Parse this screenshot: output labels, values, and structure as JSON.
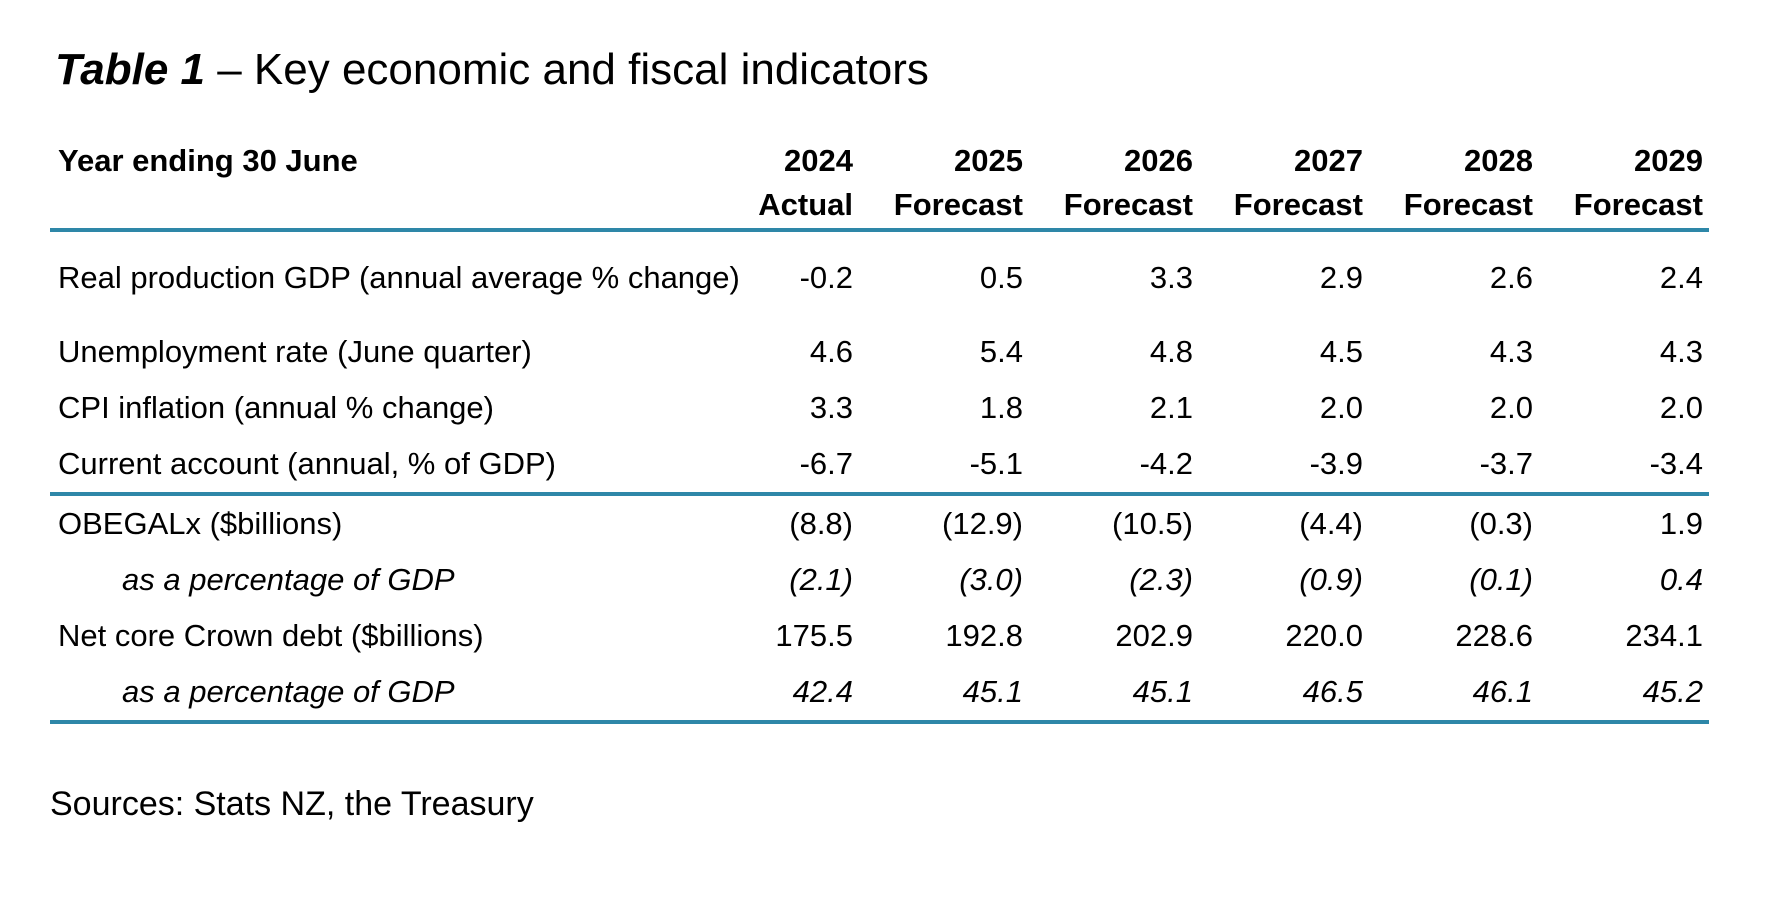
{
  "title": {
    "label": "Table 1",
    "separator": " – ",
    "text": "Key economic and fiscal indicators"
  },
  "table": {
    "corner_label": "Year ending 30 June",
    "columns": [
      {
        "year": "2024",
        "status": "Actual"
      },
      {
        "year": "2025",
        "status": "Forecast"
      },
      {
        "year": "2026",
        "status": "Forecast"
      },
      {
        "year": "2027",
        "status": "Forecast"
      },
      {
        "year": "2028",
        "status": "Forecast"
      },
      {
        "year": "2029",
        "status": "Forecast"
      }
    ],
    "rows": [
      {
        "label": "Real production GDP (annual average % change)",
        "values": [
          "-0.2",
          "0.5",
          "3.3",
          "2.9",
          "2.6",
          "2.4"
        ]
      },
      {
        "label": "Unemployment rate (June quarter)",
        "values": [
          "4.6",
          "5.4",
          "4.8",
          "4.5",
          "4.3",
          "4.3"
        ]
      },
      {
        "label": "CPI inflation (annual % change)",
        "values": [
          "3.3",
          "1.8",
          "2.1",
          "2.0",
          "2.0",
          "2.0"
        ]
      },
      {
        "label": "Current account (annual, % of GDP)",
        "values": [
          "-6.7",
          "-5.1",
          "-4.2",
          "-3.9",
          "-3.7",
          "-3.4"
        ]
      },
      {
        "label": "OBEGALx ($billions)",
        "values": [
          "(8.8)",
          "(12.9)",
          "(10.5)",
          "(4.4)",
          "(0.3)",
          "1.9"
        ]
      },
      {
        "label": "as a percentage of GDP",
        "values": [
          "(2.1)",
          "(3.0)",
          "(2.3)",
          "(0.9)",
          "(0.1)",
          "0.4"
        ]
      },
      {
        "label": "Net core Crown debt ($billions)",
        "values": [
          "175.5",
          "192.8",
          "202.9",
          "220.0",
          "228.6",
          "234.1"
        ]
      },
      {
        "label": "as a percentage of GDP",
        "values": [
          "42.4",
          "45.1",
          "45.1",
          "46.5",
          "46.1",
          "45.2"
        ]
      }
    ]
  },
  "source_note": "Sources: Stats NZ, the Treasury",
  "colors": {
    "rule": "#2e87a8",
    "text": "#000000",
    "background": "#ffffff"
  }
}
